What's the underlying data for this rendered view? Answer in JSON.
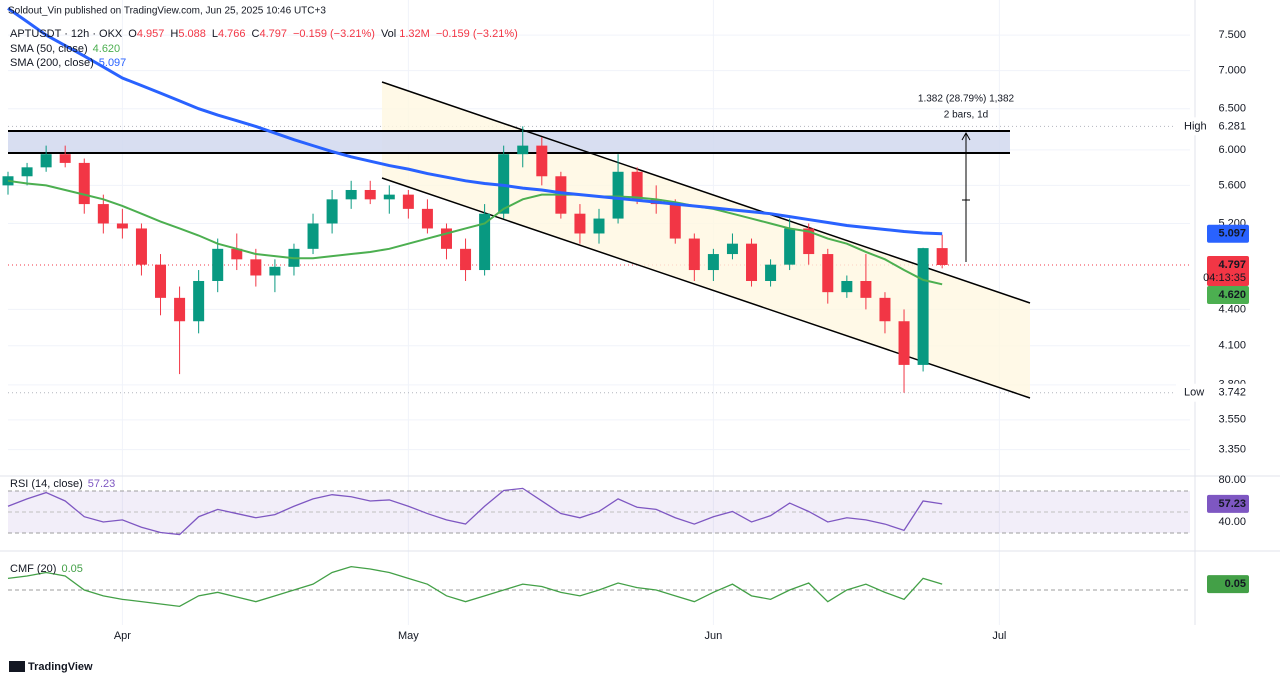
{
  "header": {
    "attribution": "Soldout_Vin published on TradingView.com, Jun 25, 2025 10:46 UTC+3"
  },
  "footer": {
    "brand": "TradingView"
  },
  "chart_data": [
    {
      "type": "candlestick",
      "symbol": "APTUSDT · 12h · OKX",
      "ohlc_prefixes": [
        "O",
        "H",
        "L",
        "C"
      ],
      "change": "−0.159 (−3.21%)",
      "volume_label": "Vol",
      "volume": "1.32M",
      "volume_change": "−0.159 (−3.21%)",
      "countdown": "04:13:35",
      "high_label": "High",
      "low_label": "Low",
      "annotations": [
        "1.382 (28.79%) 1,382",
        "2 bars, 1d"
      ],
      "up_color": "#089981",
      "down_color": "#f23645",
      "log_scale": true,
      "grid": true,
      "xlim": [
        0,
        62
      ],
      "xticks": [
        {
          "value": 6,
          "label": "Apr"
        },
        {
          "value": 21,
          "label": "May"
        },
        {
          "value": 37,
          "label": "Jun"
        },
        {
          "value": 52,
          "label": "Jul"
        }
      ],
      "ylim": [
        3.22,
        8.03
      ],
      "yticks": [
        {
          "value": 7.5,
          "label": "7.500"
        },
        {
          "value": 7,
          "label": "7.000"
        },
        {
          "value": 6.5,
          "label": "6.500"
        },
        {
          "value": 6,
          "label": "6.000"
        },
        {
          "value": 5.6,
          "label": "5.600"
        },
        {
          "value": 5.2,
          "label": "5.200"
        },
        {
          "value": 4.4,
          "label": "4.400"
        },
        {
          "value": 4.1,
          "label": "4.100"
        },
        {
          "value": 3.8,
          "label": "3.800"
        },
        {
          "value": 3.55,
          "label": "3.550"
        },
        {
          "value": 3.35,
          "label": "3.350"
        }
      ],
      "open": [
        5.6,
        5.7,
        5.8,
        5.95,
        5.85,
        5.4,
        5.2,
        5.15,
        4.8,
        4.5,
        4.3,
        4.65,
        4.95,
        4.85,
        4.7,
        4.78,
        4.95,
        5.2,
        5.45,
        5.55,
        5.45,
        5.5,
        5.35,
        5.15,
        4.95,
        4.75,
        5.3,
        5.95,
        6.05,
        5.7,
        5.3,
        5.1,
        5.25,
        5.75,
        5.45,
        5.4,
        5.05,
        4.75,
        4.9,
        5.0,
        4.65,
        4.8,
        5.15,
        4.9,
        4.55,
        4.65,
        4.5,
        4.3,
        3.95,
        4.957
      ],
      "high": [
        5.75,
        5.85,
        6.05,
        6.05,
        5.9,
        5.5,
        5.35,
        5.2,
        4.9,
        4.6,
        4.75,
        5.05,
        5.1,
        4.95,
        4.85,
        5.0,
        5.3,
        5.55,
        5.65,
        5.65,
        5.6,
        5.55,
        5.45,
        5.2,
        5.05,
        5.4,
        6.05,
        6.281,
        6.15,
        5.75,
        5.4,
        5.35,
        5.95,
        5.8,
        5.6,
        5.45,
        5.1,
        4.95,
        5.1,
        5.05,
        4.85,
        5.25,
        5.2,
        4.95,
        4.7,
        4.9,
        4.55,
        4.4,
        4.96,
        5.088
      ],
      "low": [
        5.5,
        5.6,
        5.75,
        5.8,
        5.3,
        5.1,
        5.05,
        4.7,
        4.35,
        3.88,
        4.2,
        4.55,
        4.75,
        4.6,
        4.55,
        4.7,
        4.9,
        5.1,
        5.35,
        5.4,
        5.3,
        5.25,
        5.1,
        4.85,
        4.65,
        4.7,
        5.25,
        5.8,
        5.6,
        5.25,
        5.0,
        5.0,
        5.2,
        5.4,
        5.3,
        5.0,
        4.65,
        4.65,
        4.85,
        4.6,
        4.6,
        4.75,
        4.8,
        4.45,
        4.5,
        4.4,
        4.2,
        3.742,
        3.9,
        4.766
      ],
      "close": [
        5.7,
        5.8,
        5.95,
        5.85,
        5.4,
        5.2,
        5.15,
        4.8,
        4.5,
        4.3,
        4.65,
        4.95,
        4.85,
        4.7,
        4.78,
        4.95,
        5.2,
        5.45,
        5.55,
        5.45,
        5.5,
        5.35,
        5.15,
        4.95,
        4.75,
        5.3,
        5.95,
        6.05,
        5.7,
        5.3,
        5.1,
        5.25,
        5.75,
        5.45,
        5.4,
        5.05,
        4.75,
        4.9,
        5.0,
        4.65,
        4.8,
        5.15,
        4.9,
        4.55,
        4.65,
        4.5,
        4.3,
        3.95,
        4.957,
        4.797
      ],
      "series": [
        {
          "name": "SMA (50, close)",
          "color": "#4caf50",
          "width": 2,
          "last_value_label": "4.620",
          "values": [
            5.65,
            5.62,
            5.6,
            5.55,
            5.5,
            5.45,
            5.38,
            5.3,
            5.22,
            5.15,
            5.08,
            5.0,
            4.95,
            4.9,
            4.88,
            4.86,
            4.86,
            4.88,
            4.9,
            4.92,
            4.95,
            5.0,
            5.05,
            5.1,
            5.15,
            5.2,
            5.35,
            5.45,
            5.5,
            5.5,
            5.5,
            5.48,
            5.48,
            5.47,
            5.45,
            5.42,
            5.38,
            5.35,
            5.3,
            5.25,
            5.2,
            5.15,
            5.12,
            5.05,
            5.0,
            4.92,
            4.85,
            4.75,
            4.66,
            4.62
          ]
        },
        {
          "name": "SMA (200, close)",
          "color": "#2962ff",
          "width": 3,
          "values": [
            7.9,
            7.7,
            7.5,
            7.35,
            7.2,
            7.05,
            6.9,
            6.8,
            6.7,
            6.6,
            6.5,
            6.42,
            6.35,
            6.28,
            6.2,
            6.12,
            6.05,
            5.98,
            5.92,
            5.87,
            5.82,
            5.78,
            5.73,
            5.69,
            5.65,
            5.62,
            5.6,
            5.57,
            5.55,
            5.52,
            5.5,
            5.48,
            5.46,
            5.44,
            5.42,
            5.4,
            5.38,
            5.36,
            5.34,
            5.32,
            5.3,
            5.27,
            5.24,
            5.21,
            5.18,
            5.16,
            5.14,
            5.12,
            5.105,
            5.097
          ]
        }
      ]
    },
    {
      "type": "line",
      "ylim": [
        13.3,
        89.5
      ],
      "yticks": [
        {
          "value": 80,
          "label": "80.00"
        },
        {
          "value": 40,
          "label": "40.00"
        }
      ],
      "series": [
        {
          "name": "RSI (14, close)",
          "color": "#7e57c2",
          "width": 1.3,
          "values": [
            55,
            62,
            68,
            60,
            45,
            40,
            42,
            35,
            30,
            28,
            45,
            52,
            48,
            44,
            47,
            55,
            62,
            66,
            64,
            60,
            61,
            55,
            48,
            42,
            38,
            55,
            70,
            72,
            60,
            48,
            44,
            50,
            62,
            54,
            52,
            44,
            38,
            45,
            50,
            40,
            46,
            58,
            50,
            40,
            44,
            42,
            38,
            32,
            60,
            57.23
          ]
        }
      ]
    },
    {
      "type": "line",
      "ylim": [
        -0.3,
        0.3
      ],
      "series": [
        {
          "name": "CMF (20)",
          "color": "#43a047",
          "width": 1.3,
          "values": [
            0.1,
            0.12,
            0.15,
            0.12,
            0.0,
            -0.05,
            -0.08,
            -0.1,
            -0.12,
            -0.14,
            -0.05,
            -0.02,
            -0.06,
            -0.1,
            -0.05,
            0.0,
            0.05,
            0.15,
            0.2,
            0.18,
            0.15,
            0.1,
            0.05,
            -0.05,
            -0.1,
            -0.05,
            0.0,
            0.05,
            0.03,
            -0.02,
            -0.05,
            0.0,
            0.06,
            0.02,
            0.0,
            -0.05,
            -0.1,
            -0.02,
            0.05,
            -0.05,
            -0.08,
            0.0,
            0.06,
            -0.1,
            0.0,
            0.05,
            -0.02,
            -0.08,
            0.1,
            0.05
          ]
        }
      ]
    }
  ]
}
